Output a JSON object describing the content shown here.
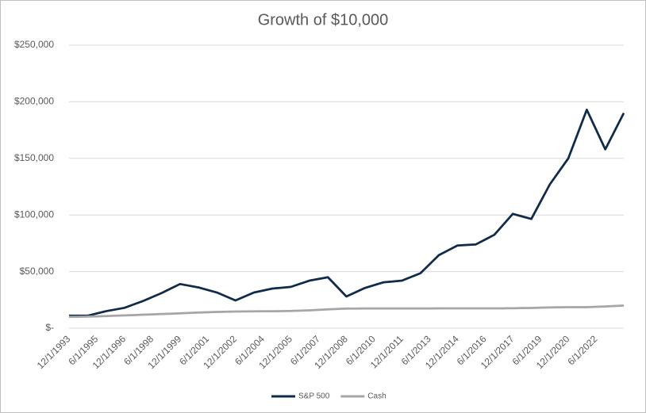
{
  "chart_data": {
    "type": "line",
    "title": "Growth of $10,000",
    "categories": [
      "12/1/1993",
      null,
      null,
      "6/1/1995",
      null,
      null,
      "12/1/1996",
      null,
      null,
      "6/1/1998",
      null,
      null,
      "12/1/1999",
      null,
      null,
      "6/1/2001",
      null,
      null,
      "12/1/2002",
      null,
      null,
      "6/1/2004",
      null,
      null,
      "12/1/2005",
      null,
      null,
      "6/1/2007",
      null,
      null,
      "12/1/2008",
      null,
      null,
      "6/1/2010",
      null,
      null,
      "12/1/2011",
      null,
      null,
      "6/1/2013",
      null,
      null,
      "12/1/2014",
      null,
      null,
      "6/1/2016",
      null,
      null,
      "12/1/2017",
      null,
      null,
      "6/1/2019",
      null,
      null,
      "12/1/2020",
      null,
      null,
      "6/1/2022",
      null,
      null,
      null
    ],
    "series": [
      {
        "name": "S&P 500",
        "color": "#0f2a4a",
        "values": [
          11000,
          11000,
          11000,
          13000,
          15000,
          16500,
          18000,
          21000,
          24000,
          27500,
          31000,
          35000,
          39000,
          37500,
          36000,
          33750,
          31500,
          28000,
          24500,
          28000,
          31500,
          33250,
          35000,
          35750,
          36500,
          39250,
          42000,
          43500,
          45000,
          36500,
          28000,
          31750,
          35500,
          38000,
          40500,
          41250,
          42000,
          45250,
          48500,
          56500,
          64500,
          68750,
          73000,
          73500,
          74000,
          78250,
          82500,
          91750,
          101000,
          98750,
          96500,
          111750,
          127000,
          138500,
          150000,
          171500,
          193000,
          175500,
          158000,
          174000,
          190000
        ]
      },
      {
        "name": "Cash",
        "color": "#a6a6a6",
        "values": [
          10000,
          10100,
          10200,
          10450,
          10700,
          11000,
          11300,
          11600,
          11900,
          12200,
          12500,
          12800,
          13100,
          13450,
          13800,
          14100,
          14400,
          14550,
          14700,
          14800,
          14900,
          14950,
          15000,
          15100,
          15200,
          15500,
          15800,
          16200,
          16600,
          16950,
          17300,
          17350,
          17400,
          17400,
          17400,
          17400,
          17400,
          17400,
          17400,
          17450,
          17500,
          17500,
          17500,
          17500,
          17500,
          17500,
          17500,
          17550,
          17600,
          17750,
          17900,
          18100,
          18300,
          18450,
          18600,
          18600,
          18600,
          18900,
          19200,
          19600,
          20000
        ]
      }
    ],
    "ylim": [
      0,
      250000
    ],
    "yticks": [
      {
        "value": 0,
        "label": "$-"
      },
      {
        "value": 50000,
        "label": "$50,000"
      },
      {
        "value": 100000,
        "label": "$100,000"
      },
      {
        "value": 150000,
        "label": "$150,000"
      },
      {
        "value": 200000,
        "label": "$200,000"
      },
      {
        "value": 250000,
        "label": "$250,000"
      }
    ],
    "grid": true,
    "legend": "bottom"
  }
}
